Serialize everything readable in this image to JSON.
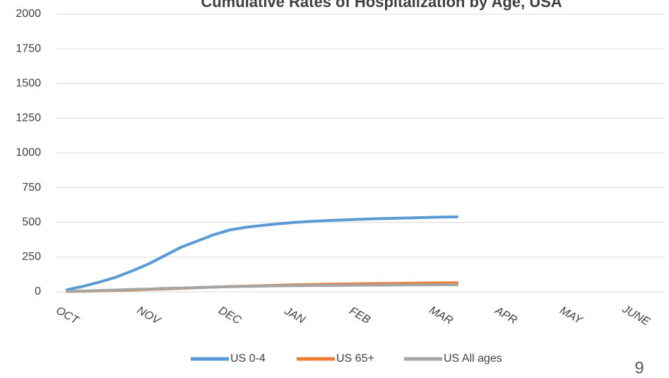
{
  "chart_data": {
    "type": "line",
    "title": "Cumulative Rates of Hospitalization by Age, USA",
    "categories": [
      "OCT",
      null,
      null,
      null,
      null,
      "NOV",
      null,
      null,
      null,
      null,
      "DEC",
      null,
      null,
      null,
      "JAN",
      null,
      null,
      null,
      "FEB",
      null,
      null,
      null,
      null,
      "MAR",
      null,
      null,
      null,
      "APR",
      null,
      null,
      null,
      "MAY",
      null,
      null,
      null,
      "JUNE"
    ],
    "series": [
      {
        "name": "US 0-4",
        "color": "#5b9bd5",
        "values": [
          15,
          40,
          70,
          105,
          150,
          200,
          260,
          320,
          365,
          410,
          445,
          465,
          478,
          490,
          500,
          507,
          513,
          518,
          522,
          526,
          529,
          532,
          535,
          538,
          540,
          null,
          null,
          null,
          null,
          null,
          null,
          null,
          null,
          null,
          null,
          null
        ]
      },
      {
        "name": "US 65+",
        "color": "#ed7d31",
        "values": [
          2,
          4,
          7,
          10,
          13,
          17,
          21,
          25,
          30,
          34,
          38,
          41,
          44,
          47,
          50,
          52,
          54,
          56,
          58,
          59,
          60,
          62,
          63,
          64,
          65,
          null,
          null,
          null,
          null,
          null,
          null,
          null,
          null,
          null,
          null,
          null
        ]
      },
      {
        "name": "US All ages",
        "color": "#a5a5a5",
        "values": [
          3,
          6,
          9,
          13,
          17,
          20,
          24,
          27,
          31,
          34,
          37,
          39,
          41,
          43,
          44,
          45,
          46,
          47,
          48,
          48,
          49,
          50,
          50,
          51,
          51,
          null,
          null,
          null,
          null,
          null,
          null,
          null,
          null,
          null,
          null,
          null
        ]
      }
    ],
    "ylim": [
      0,
      2000
    ],
    "yticks": [
      0,
      250,
      500,
      750,
      1000,
      1250,
      1500,
      1750,
      2000
    ],
    "grid": true,
    "legend": "bottom"
  },
  "page_number": "9"
}
